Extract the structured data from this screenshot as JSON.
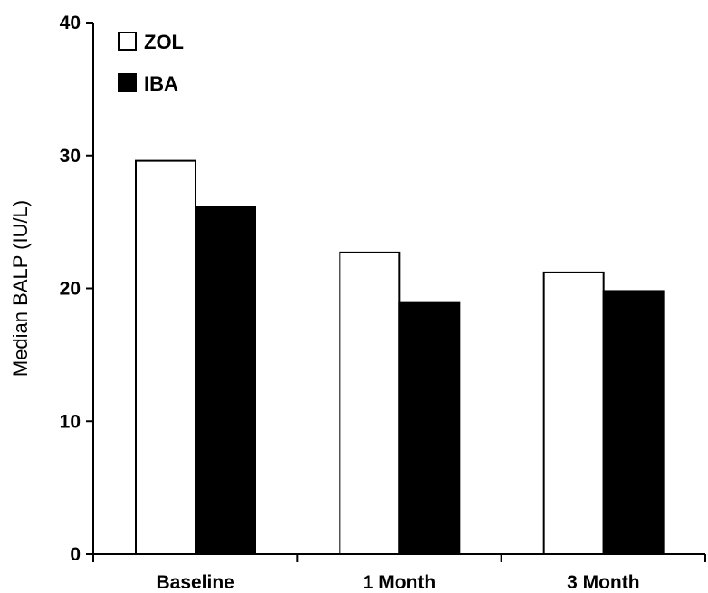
{
  "chart_data": {
    "type": "bar",
    "title": "",
    "xlabel": "",
    "ylabel": "Median BALP (IU/L)",
    "ylim": [
      0,
      40
    ],
    "yticks": [
      0,
      10,
      20,
      30,
      40
    ],
    "grid": false,
    "legend_position": "top-left",
    "categories": [
      "Baseline",
      "1 Month",
      "3 Month"
    ],
    "series": [
      {
        "name": "ZOL",
        "color": "#ffffff",
        "values": [
          29.6,
          22.7,
          21.2
        ]
      },
      {
        "name": "IBA",
        "color": "#000000",
        "values": [
          26.1,
          18.9,
          19.8
        ]
      }
    ]
  }
}
